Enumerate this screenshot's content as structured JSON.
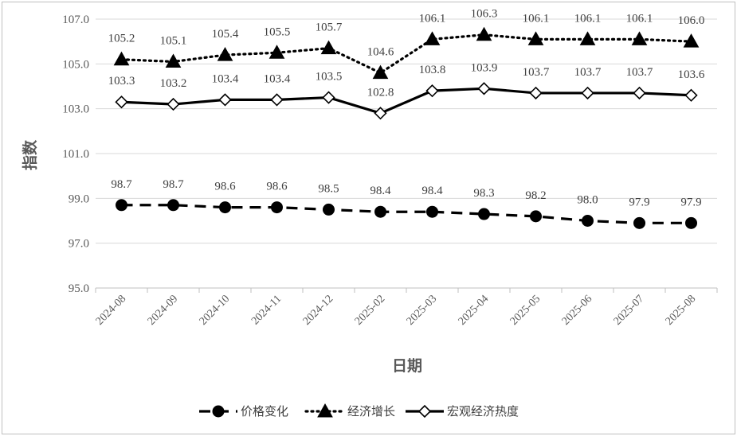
{
  "chart_data": {
    "type": "line",
    "title": "",
    "xlabel": "日期",
    "ylabel": "指数",
    "ylim": [
      95.0,
      107.0
    ],
    "yticks": [
      "95.0",
      "97.0",
      "99.0",
      "101.0",
      "103.0",
      "105.0",
      "107.0"
    ],
    "grid": "horizontal",
    "legend_position": "bottom",
    "categories": [
      "2024-08",
      "2024-09",
      "2024-10",
      "2024-11",
      "2024-12",
      "2025-02",
      "2025-03",
      "2025-04",
      "2025-05",
      "2025-06",
      "2025-07",
      "2025-08"
    ],
    "series": [
      {
        "name": "价格变化",
        "style": "dashed",
        "marker": "filled-circle",
        "color": "#000000",
        "values": [
          98.7,
          98.7,
          98.6,
          98.6,
          98.5,
          98.4,
          98.4,
          98.3,
          98.2,
          98.0,
          97.9,
          97.9
        ],
        "labels": [
          "98.7",
          "98.7",
          "98.6",
          "98.6",
          "98.5",
          "98.4",
          "98.4",
          "98.3",
          "98.2",
          "98.0",
          "97.9",
          "97.9"
        ]
      },
      {
        "name": "经济增长",
        "style": "dotted",
        "marker": "filled-triangle",
        "color": "#000000",
        "values": [
          105.2,
          105.1,
          105.4,
          105.5,
          105.7,
          104.6,
          106.1,
          106.3,
          106.1,
          106.1,
          106.1,
          106.0
        ],
        "labels": [
          "105.2",
          "105.1",
          "105.4",
          "105.5",
          "105.7",
          "104.6",
          "106.1",
          "106.3",
          "106.1",
          "106.1",
          "106.1",
          "106.0"
        ]
      },
      {
        "name": "宏观经济热度",
        "style": "solid",
        "marker": "hollow-diamond",
        "color": "#000000",
        "values": [
          103.3,
          103.2,
          103.4,
          103.4,
          103.5,
          102.8,
          103.8,
          103.9,
          103.7,
          103.7,
          103.7,
          103.6
        ],
        "labels": [
          "103.3",
          "103.2",
          "103.4",
          "103.4",
          "103.5",
          "102.8",
          "103.8",
          "103.9",
          "103.7",
          "103.7",
          "103.7",
          "103.6"
        ]
      }
    ]
  }
}
